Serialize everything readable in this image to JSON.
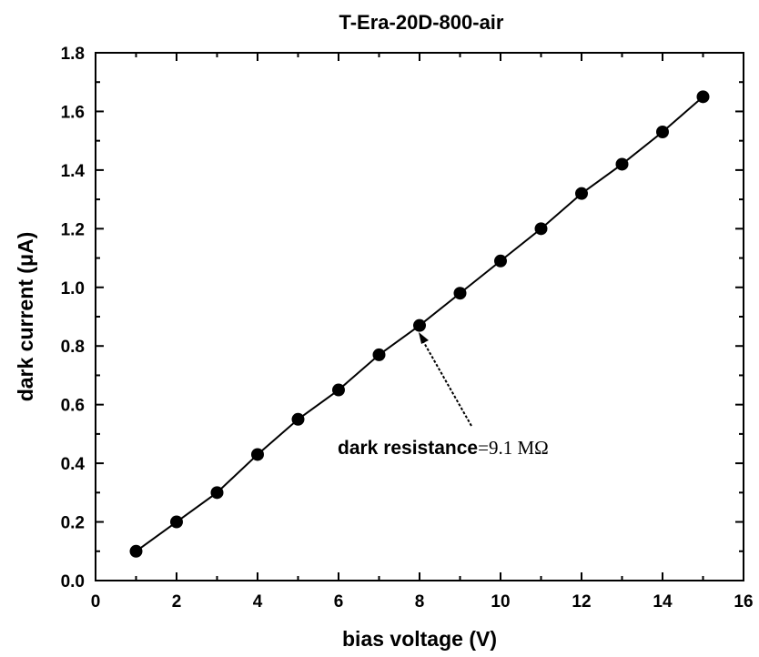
{
  "chart_data": {
    "type": "line",
    "title": "T-Era-20D-800-air",
    "xlabel": "bias voltage (V)",
    "ylabel": "dark current (μA)",
    "xlim": [
      0,
      16
    ],
    "ylim": [
      0.0,
      1.8
    ],
    "x_ticks": [
      "0",
      "2",
      "4",
      "6",
      "8",
      "10",
      "12",
      "14",
      "16"
    ],
    "y_ticks": [
      "0.0",
      "0.2",
      "0.4",
      "0.6",
      "0.8",
      "1.0",
      "1.2",
      "1.4",
      "1.6",
      "1.8"
    ],
    "grid": false,
    "series": [
      {
        "marker": "circle",
        "color": "#000000",
        "x": [
          1,
          2,
          3,
          4,
          5,
          6,
          7,
          8,
          9,
          10,
          11,
          12,
          13,
          14,
          15
        ],
        "y": [
          0.1,
          0.2,
          0.3,
          0.43,
          0.55,
          0.65,
          0.77,
          0.87,
          0.98,
          1.09,
          1.2,
          1.32,
          1.42,
          1.53,
          1.65
        ]
      }
    ],
    "annotation": {
      "label": "dark resistance",
      "value": "=9.1 MΩ",
      "points_to": {
        "x": 8,
        "y": 0.87
      }
    }
  }
}
